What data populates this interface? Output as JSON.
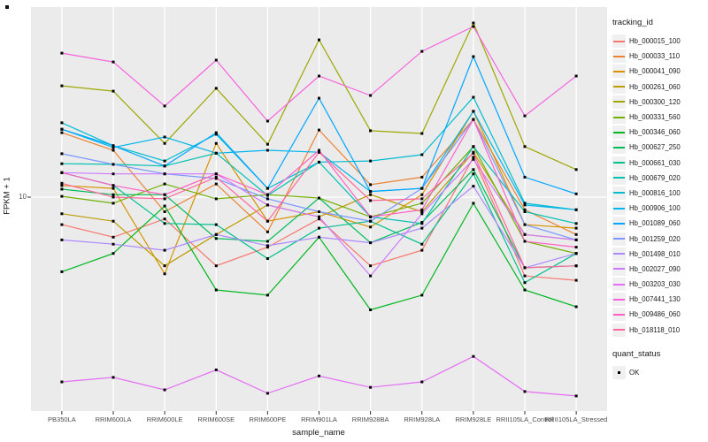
{
  "figure": {
    "y_tick_label": "10"
  },
  "legend": {
    "tracking_title": "tracking_id",
    "quant_title": "quant_status",
    "quant_label": "OK"
  },
  "style": {
    "panel_bg": "#EBEBEB",
    "grid_color": "#FFFFFF",
    "tick_color": "#333333",
    "point_color": "#000000"
  },
  "chart_data": {
    "type": "line",
    "xlabel": "sample_name",
    "ylabel": "FPKM + 1",
    "y_scale": "log10",
    "y_ticks": [
      10
    ],
    "ylim": [
      0.9,
      97
    ],
    "grid": "major-only",
    "legend_position": "right",
    "point_marker": "black-square (quant_status OK)",
    "x_categories": [
      "PB350LA",
      "RRIM600LA",
      "RRIM600LE",
      "RRIM600SE",
      "RRIM600PE",
      "RRIM901LA",
      "RRIM928BA",
      "RRIM928LA",
      "RRIM928LE",
      "RRII105LA_Control",
      "RRII105LA_Stressed"
    ],
    "series": [
      {
        "name": "Hb_000015_100",
        "color": "#F8766D",
        "values": [
          7.2,
          6.2,
          7.7,
          4.4,
          5.5,
          7.7,
          4.4,
          5.3,
          16.1,
          3.9,
          3.7
        ]
      },
      {
        "name": "Hb_000033_110",
        "color": "#EB8335",
        "values": [
          21.6,
          17.5,
          8.4,
          11.7,
          6.6,
          22.3,
          11.6,
          12.7,
          25.3,
          8.6,
          6.4
        ]
      },
      {
        "name": "Hb_000041_090",
        "color": "#D89200",
        "values": [
          11.5,
          11.1,
          4.0,
          19.0,
          7.5,
          8.4,
          7.0,
          10.3,
          27.9,
          7.2,
          6.9
        ]
      },
      {
        "name": "Hb_000261_060",
        "color": "#BE9C00",
        "values": [
          8.2,
          7.5,
          4.4,
          6.4,
          9.1,
          7.9,
          10.3,
          8.4,
          17.1,
          6.4,
          6.0
        ]
      },
      {
        "name": "Hb_000300_120",
        "color": "#9DA700",
        "values": [
          37.8,
          35.5,
          19.0,
          36.7,
          18.8,
          65.5,
          22.1,
          21.4,
          80.1,
          18.3,
          13.9
        ]
      },
      {
        "name": "Hb_000331_560",
        "color": "#6FB000",
        "values": [
          10.1,
          9.3,
          11.7,
          9.8,
          10.3,
          9.9,
          7.9,
          9.3,
          18.3,
          5.9,
          5.1
        ]
      },
      {
        "name": "Hb_000346_060",
        "color": "#00B81F",
        "values": [
          4.1,
          5.1,
          9.0,
          3.3,
          3.1,
          6.2,
          2.6,
          3.1,
          9.3,
          3.3,
          2.7
        ]
      },
      {
        "name": "Hb_000627_250",
        "color": "#00BC59",
        "values": [
          11.0,
          10.3,
          10.3,
          6.1,
          5.9,
          9.9,
          5.8,
          7.4,
          13.9,
          4.3,
          4.4
        ]
      },
      {
        "name": "Hb_000661_030",
        "color": "#00C08E",
        "values": [
          13.4,
          11.5,
          7.3,
          7.2,
          4.8,
          6.9,
          7.5,
          5.7,
          13.2,
          3.6,
          5.1
        ]
      },
      {
        "name": "Hb_000679_020",
        "color": "#00C0B4",
        "values": [
          14.9,
          14.8,
          14.5,
          16.9,
          10.2,
          15.2,
          7.9,
          7.3,
          18.3,
          8.4,
          7.3
        ]
      },
      {
        "name": "Hb_000816_100",
        "color": "#00BDD1",
        "values": [
          24.3,
          18.5,
          15.4,
          21.2,
          11.1,
          15.2,
          15.4,
          16.6,
          33.0,
          9.3,
          8.6
        ]
      },
      {
        "name": "Hb_000906_100",
        "color": "#00B5EC",
        "values": [
          22.5,
          18.1,
          20.5,
          16.9,
          17.5,
          17.1,
          10.7,
          11.1,
          27.9,
          9.1,
          8.6
        ]
      },
      {
        "name": "Hb_001089_060",
        "color": "#00A7FF",
        "values": [
          22.5,
          18.5,
          14.5,
          21.6,
          11.1,
          32.6,
          10.7,
          11.1,
          53.6,
          12.7,
          10.4
        ]
      },
      {
        "name": "Hb_001259_020",
        "color": "#7997FF",
        "values": [
          16.8,
          14.8,
          13.2,
          12.5,
          9.8,
          8.4,
          7.5,
          11.1,
          25.3,
          7.2,
          6.0
        ]
      },
      {
        "name": "Hb_001498_010",
        "color": "#AC88FF",
        "values": [
          6.0,
          5.7,
          5.3,
          6.4,
          5.6,
          6.2,
          5.8,
          6.9,
          11.4,
          4.3,
          5.1
        ]
      },
      {
        "name": "Hb_002027_090",
        "color": "#CF78FF",
        "values": [
          13.4,
          13.2,
          13.2,
          13.2,
          9.1,
          7.9,
          3.9,
          8.2,
          15.7,
          6.4,
          6.0
        ]
      },
      {
        "name": "Hb_003203_030",
        "color": "#E56DF5",
        "values": [
          1.1,
          1.16,
          1.0,
          1.27,
          0.96,
          1.18,
          1.03,
          1.1,
          1.49,
          0.98,
          0.93
        ]
      },
      {
        "name": "Hb_007441_130",
        "color": "#F763DF",
        "values": [
          55.9,
          50.3,
          29.7,
          51.4,
          24.8,
          42.5,
          33.7,
          57.1,
          76.8,
          26.4,
          42.5
        ]
      },
      {
        "name": "Hb_009486_060",
        "color": "#FF61C7",
        "values": [
          13.4,
          11.5,
          10.3,
          13.2,
          10.3,
          17.5,
          7.9,
          8.6,
          25.3,
          5.9,
          5.5
        ]
      },
      {
        "name": "Hb_018118_010",
        "color": "#FF689E",
        "values": [
          11.8,
          10.0,
          9.8,
          12.7,
          7.5,
          17.1,
          9.6,
          9.8,
          16.9,
          4.3,
          4.4
        ]
      }
    ]
  }
}
